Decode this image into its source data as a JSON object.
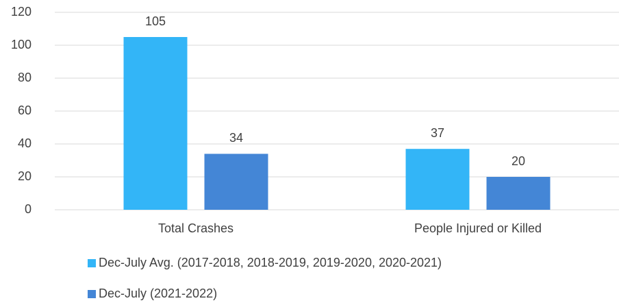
{
  "chart_data": {
    "type": "bar",
    "categories": [
      "Total Crashes",
      "People Injured or Killed"
    ],
    "series": [
      {
        "name": "Dec-July Avg. (2017-2018, 2018-2019, 2019-2020, 2020-2021)",
        "color": "#33b5f7",
        "values": [
          105,
          37
        ]
      },
      {
        "name": "Dec-July (2021-2022)",
        "color": "#4486d6",
        "values": [
          34,
          20
        ]
      }
    ],
    "ylim": [
      0,
      120
    ],
    "yticks": [
      0,
      20,
      40,
      60,
      80,
      100,
      120
    ],
    "grid": true,
    "legend": "bottom"
  }
}
